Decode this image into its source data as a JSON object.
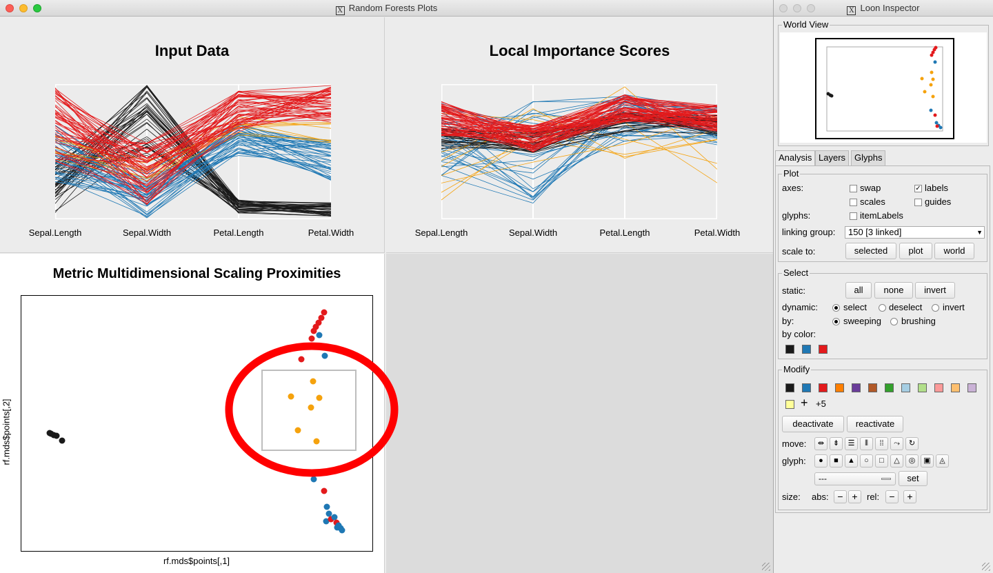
{
  "main_window": {
    "title": "Random Forests Plots",
    "panels": {
      "input_data": {
        "title": "Input Data",
        "axes": [
          "Sepal.Length",
          "Sepal.Width",
          "Petal.Length",
          "Petal.Width"
        ]
      },
      "local_importance": {
        "title": "Local Importance Scores",
        "axes": [
          "Sepal.Length",
          "Sepal.Width",
          "Petal.Length",
          "Petal.Width"
        ]
      },
      "mds": {
        "title": "Metric Multidimensional Scaling Proximities",
        "xlabel": "rf.mds$points[,1]",
        "ylabel": "rf.mds$points[,2]"
      }
    },
    "colors": {
      "black": "#1a1a1a",
      "blue": "#1f78b4",
      "red": "#e31a1c",
      "orange": "#f5a20d",
      "annotation": "#ff0000"
    }
  },
  "inspector": {
    "title": "Loon Inspector",
    "world_view_title": "World View",
    "tabs": [
      "Analysis",
      "Layers",
      "Glyphs"
    ],
    "plot": {
      "title": "Plot",
      "axes_label": "axes:",
      "swap": "swap",
      "labels": "labels",
      "scales": "scales",
      "guides": "guides",
      "glyphs_label": "glyphs:",
      "item_labels": "itemLabels",
      "linking_label": "linking group:",
      "linking_value": "150  [3 linked]",
      "scale_label": "scale to:",
      "scale_buttons": [
        "selected",
        "plot",
        "world"
      ]
    },
    "select": {
      "title": "Select",
      "static_label": "static:",
      "static_buttons": [
        "all",
        "none",
        "invert"
      ],
      "dynamic_label": "dynamic:",
      "dynamic_options": [
        "select",
        "deselect",
        "invert"
      ],
      "by_label": "by:",
      "by_options": [
        "sweeping",
        "brushing"
      ],
      "by_color_label": "by color:",
      "by_color_swatches": [
        "#1a1a1a",
        "#1f78b4",
        "#e31a1c"
      ]
    },
    "modify": {
      "title": "Modify",
      "swatches": [
        "#1a1a1a",
        "#1f78b4",
        "#e31a1c",
        "#ff7f00",
        "#6a3d9a",
        "#b15928",
        "#33a02c",
        "#a6cee3",
        "#b2df8a",
        "#fb9a99",
        "#fdbf6f",
        "#cab2d6",
        "#ffff99"
      ],
      "more_label": "+5",
      "deactivate": "deactivate",
      "reactivate": "reactivate",
      "move_label": "move:",
      "glyph_label": "glyph:",
      "glyph_select_value": "---",
      "set_button": "set",
      "size_label": "size:",
      "abs_label": "abs:",
      "rel_label": "rel:",
      "minus": "−",
      "plus": "+"
    }
  }
}
